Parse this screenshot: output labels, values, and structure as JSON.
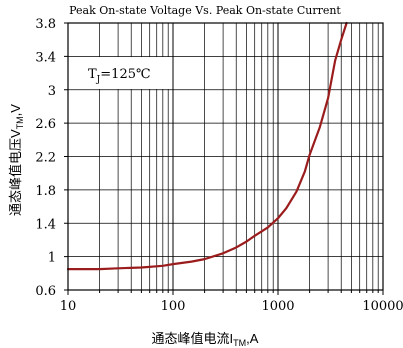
{
  "chart_data": {
    "type": "line",
    "title": "Peak On-state Voltage Vs. Peak On-state Current",
    "xlabel": "通态峰值电流I",
    "xlabel_sub": "TM",
    "xlabel_unit": ",A",
    "ylabel": "通态峰值电压V",
    "ylabel_sub": "TM",
    "ylabel_unit": ",V",
    "x_scale": "log",
    "xlim": [
      10,
      10000
    ],
    "ylim": [
      0.6,
      3.8
    ],
    "x_ticks": [
      10,
      100,
      1000,
      10000
    ],
    "x_tick_labels": [
      "10",
      "100",
      "1000",
      "10000"
    ],
    "y_ticks": [
      0.6,
      1,
      1.4,
      1.8,
      2.2,
      2.6,
      3,
      3.4,
      3.8
    ],
    "y_tick_labels": [
      "0.6",
      "1",
      "1.4",
      "1.8",
      "2.2",
      "2.6",
      "3",
      "3.4",
      "3.8"
    ],
    "grid": true,
    "annotation": {
      "prefix": "T",
      "sub": "J",
      "suffix": "=125℃"
    },
    "series": [
      {
        "color": "#9b1c1c",
        "x": [
          10,
          20,
          30,
          50,
          80,
          100,
          150,
          200,
          300,
          400,
          500,
          600,
          800,
          1000,
          1200,
          1500,
          1800,
          2000,
          2500,
          3000,
          3500,
          4000,
          4500
        ],
        "y": [
          0.85,
          0.85,
          0.86,
          0.87,
          0.89,
          0.91,
          0.94,
          0.97,
          1.04,
          1.11,
          1.18,
          1.25,
          1.35,
          1.46,
          1.58,
          1.78,
          2.02,
          2.22,
          2.55,
          2.9,
          3.35,
          3.6,
          3.8
        ]
      }
    ]
  }
}
